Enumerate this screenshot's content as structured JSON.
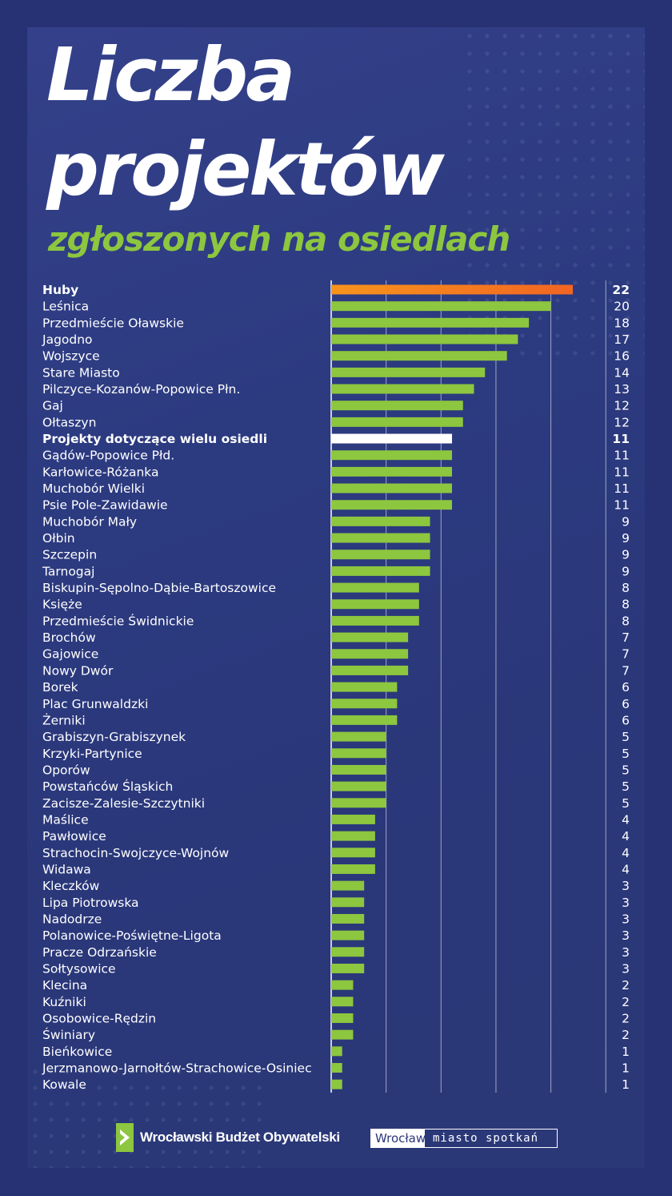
{
  "title_line1": "Liczba",
  "title_line2": "projektów",
  "subtitle": "zgłoszonych na osiedlach",
  "colors": {
    "highlight": "#f26522",
    "normal": "#8dc63f",
    "special": "#ffffff",
    "background": "#2a3779"
  },
  "footer": {
    "wbo_label": "Wrocławski Budżet Obywatelski",
    "wroclaw": "Wrocław",
    "tagline": "miasto spotkań"
  },
  "chart_data": {
    "type": "bar",
    "orientation": "horizontal",
    "xlim": [
      0,
      25
    ],
    "grid": true,
    "categories": [
      "Huby",
      "Leśnica",
      "Przedmieście Oławskie",
      "Jagodno",
      "Wojszyce",
      "Stare Miasto",
      "Pilczyce-Kozanów-Popowice Płn.",
      "Gaj",
      "Ołtaszyn",
      "Projekty dotyczące wielu osiedli",
      "Gądów-Popowice Płd.",
      "Karłowice-Różanka",
      "Muchobór Wielki",
      "Psie Pole-Zawidawie",
      "Muchobór Mały",
      "Ołbin",
      "Szczepin",
      "Tarnogaj",
      "Biskupin-Sępolno-Dąbie-Bartoszowice",
      "Księże",
      "Przedmieście Świdnickie",
      "Brochów",
      "Gajowice",
      "Nowy Dwór",
      "Borek",
      "Plac Grunwaldzki",
      "Żerniki",
      "Grabiszyn-Grabiszynek",
      "Krzyki-Partynice",
      "Oporów",
      "Powstańców Śląskich",
      "Zacisze-Zalesie-Szczytniki",
      "Maślice",
      "Pawłowice",
      "Strachocin-Swojczyce-Wojnów",
      "Widawa",
      "Kleczków",
      "Lipa Piotrowska",
      "Nadodrze",
      "Polanowice-Poświętne-Ligota",
      "Pracze Odrzańskie",
      "Sołtysowice",
      "Klecina",
      "Kuźniki",
      "Osobowice-Rędzin",
      "Świniary",
      "Bieńkowice",
      "Jerzmanowo-Jarnołtów-Strachowice-Osiniec",
      "Kowale"
    ],
    "values": [
      22,
      20,
      18,
      17,
      16,
      14,
      13,
      12,
      12,
      11,
      11,
      11,
      11,
      11,
      9,
      9,
      9,
      9,
      8,
      8,
      8,
      7,
      7,
      7,
      6,
      6,
      6,
      5,
      5,
      5,
      5,
      5,
      4,
      4,
      4,
      4,
      3,
      3,
      3,
      3,
      3,
      3,
      2,
      2,
      2,
      2,
      1,
      1,
      1
    ],
    "highlighted": [
      "Huby"
    ],
    "special": [
      "Projekty dotyczące wielu osiedli"
    ]
  }
}
